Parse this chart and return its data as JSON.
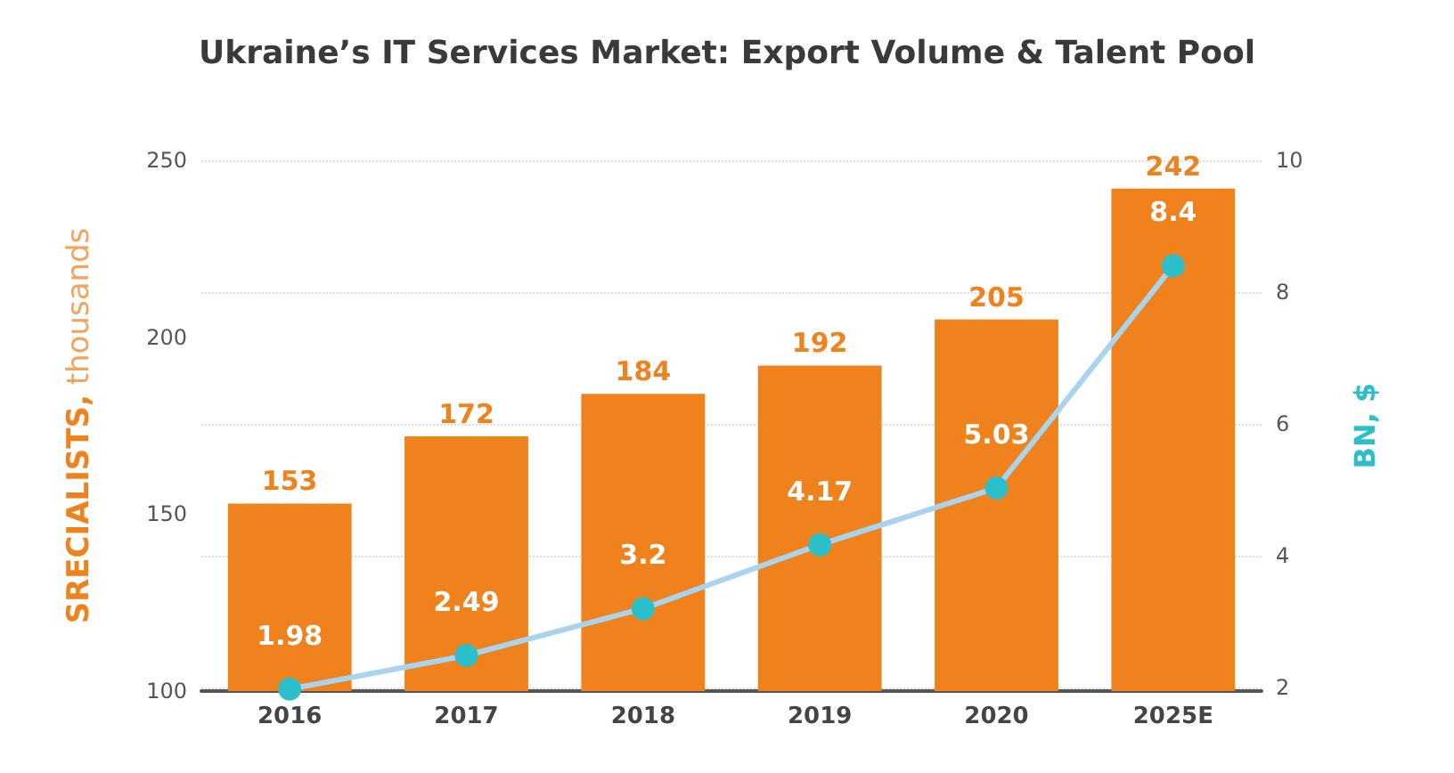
{
  "chart_data": {
    "type": "bar",
    "title": "Ukraine’s IT Services Market: Export Volume & Talent Pool",
    "ylabel": "SRECIALISTS, thousands",
    "y2label": "BN, $",
    "categories": [
      "2016",
      "2017",
      "2018",
      "2019",
      "2020",
      "2025E"
    ],
    "series": [
      {
        "color": "#f0821e",
        "values": [
          153,
          172,
          184,
          192,
          205,
          242
        ]
      },
      {
        "type": "line",
        "axis": "y2",
        "color": "#a8d4f0",
        "values": [
          1.98,
          2.49,
          3.2,
          4.17,
          5.03,
          8.4
        ]
      }
    ],
    "ylim": [
      100,
      250
    ],
    "yticks": [
      100,
      150,
      200,
      250
    ],
    "y2lim": [
      1.95,
      10
    ],
    "y2ticks": [
      2,
      4,
      6,
      8,
      10
    ],
    "data_labels": true,
    "grid": "y",
    "marker": "circle",
    "line_style": "solid"
  }
}
